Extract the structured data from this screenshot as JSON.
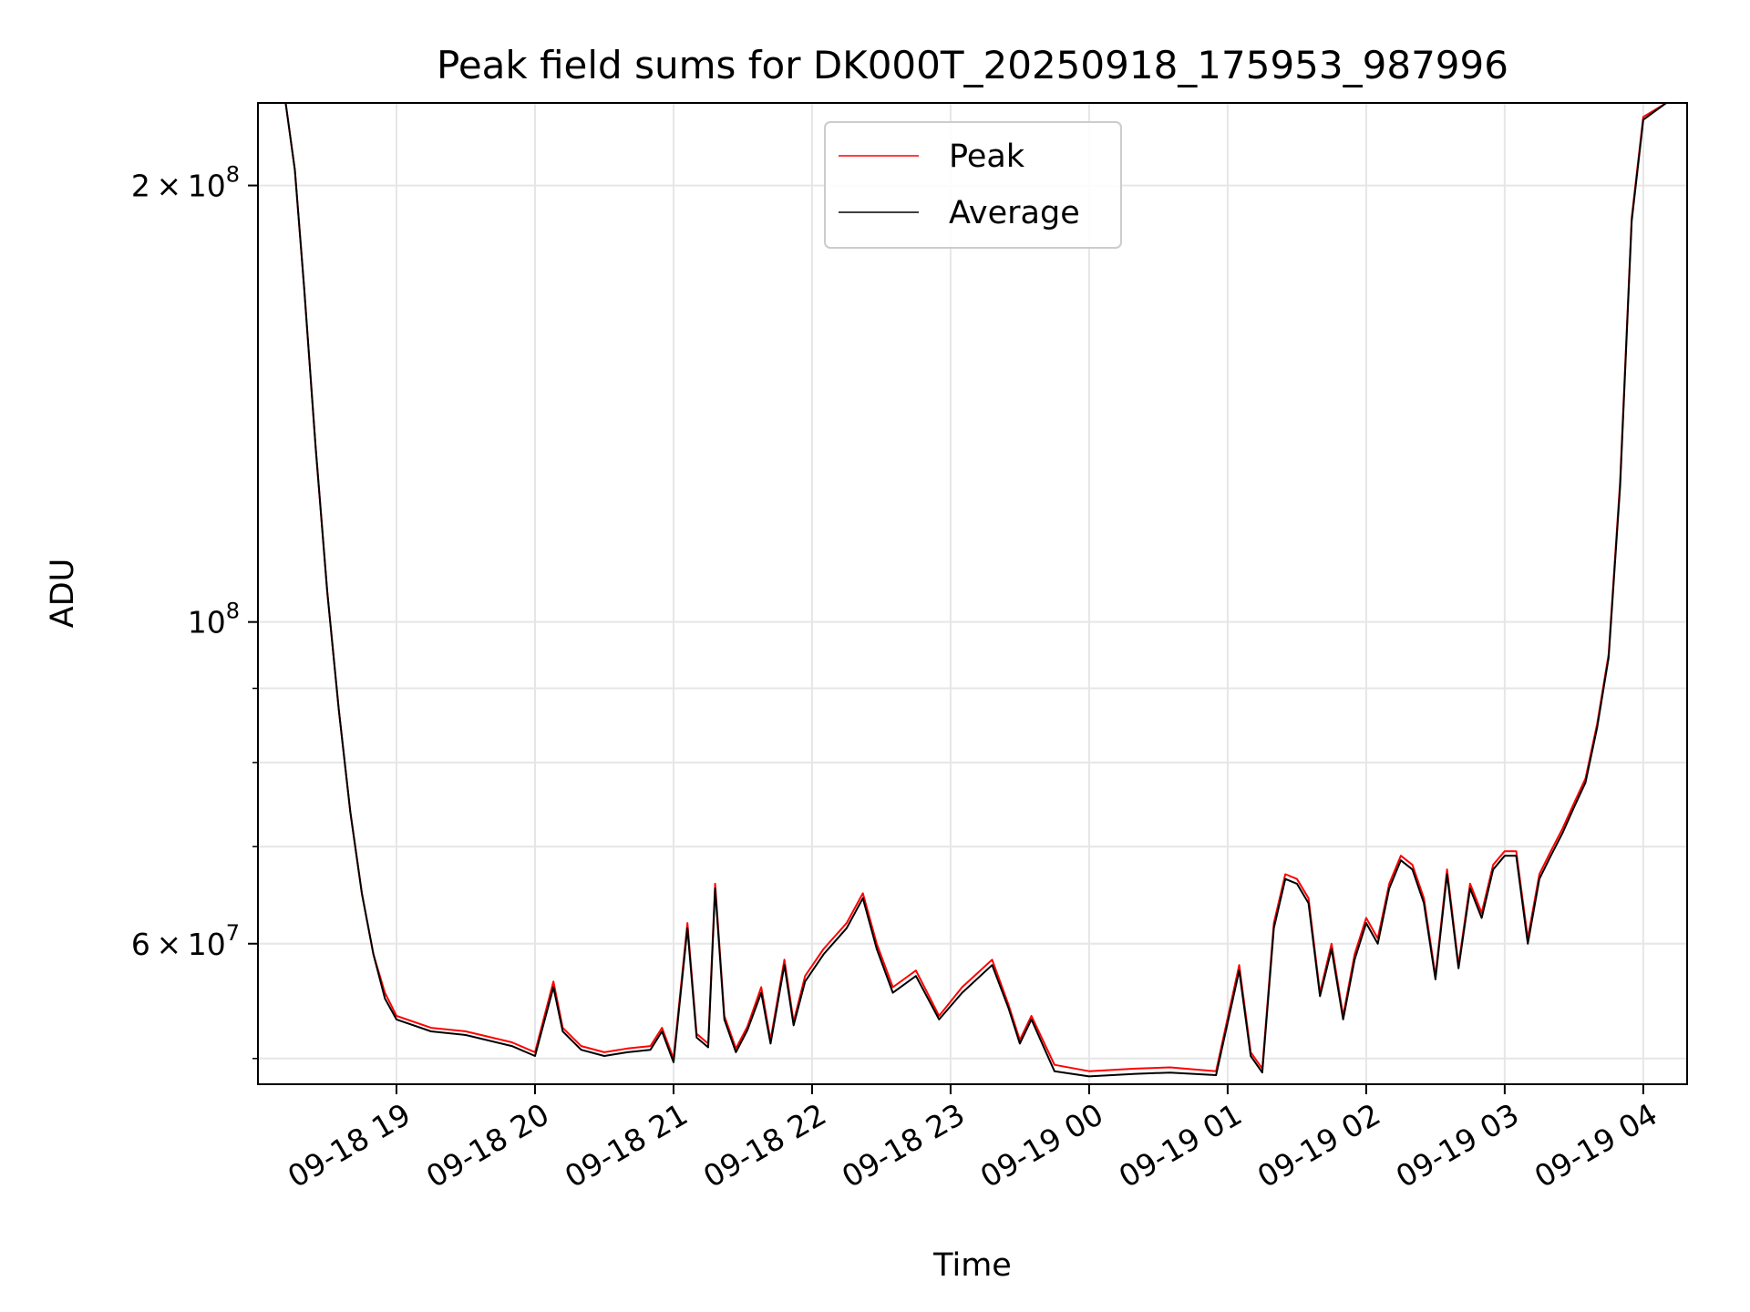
{
  "chart_data": {
    "type": "line",
    "title": "Peak field sums for DK000T_20250918_175953_987996",
    "xlabel": "Time",
    "ylabel": "ADU",
    "yscale": "log",
    "grid": true,
    "legend_placement": "top-center",
    "xlim": [
      "2025-09-18 18:00",
      "2025-09-19 04:19"
    ],
    "ylim": [
      48000000,
      228000000
    ],
    "x_ticks": [
      {
        "label": "09-18 19",
        "value": "2025-09-18 19:00"
      },
      {
        "label": "09-18 20",
        "value": "2025-09-18 20:00"
      },
      {
        "label": "09-18 21",
        "value": "2025-09-18 21:00"
      },
      {
        "label": "09-18 22",
        "value": "2025-09-18 22:00"
      },
      {
        "label": "09-18 23",
        "value": "2025-09-18 23:00"
      },
      {
        "label": "09-19 00",
        "value": "2025-09-19 00:00"
      },
      {
        "label": "09-19 01",
        "value": "2025-09-19 01:00"
      },
      {
        "label": "09-19 02",
        "value": "2025-09-19 02:00"
      },
      {
        "label": "09-19 03",
        "value": "2025-09-19 03:00"
      },
      {
        "label": "09-19 04",
        "value": "2025-09-19 04:00"
      }
    ],
    "y_ticks": [
      {
        "mantissa": "6",
        "times": "×",
        "base": "10",
        "exp": "7",
        "value": 60000000
      },
      {
        "mantissa": "",
        "times": "",
        "base": "10",
        "exp": "8",
        "value": 100000000
      },
      {
        "mantissa": "2",
        "times": "×",
        "base": "10",
        "exp": "8",
        "value": 200000000
      }
    ],
    "y_minor_ticks": [
      50000000,
      70000000,
      80000000,
      90000000
    ],
    "series": [
      {
        "name": "Peak",
        "color": "#ff0000",
        "x": [
          "2025-09-18 18:00",
          "2025-09-18 18:12",
          "2025-09-18 18:16",
          "2025-09-18 18:20",
          "2025-09-18 18:25",
          "2025-09-18 18:30",
          "2025-09-18 18:35",
          "2025-09-18 18:40",
          "2025-09-18 18:45",
          "2025-09-18 18:50",
          "2025-09-18 18:55",
          "2025-09-18 19:00",
          "2025-09-18 19:15",
          "2025-09-18 19:30",
          "2025-09-18 19:50",
          "2025-09-18 20:00",
          "2025-09-18 20:08",
          "2025-09-18 20:12",
          "2025-09-18 20:20",
          "2025-09-18 20:30",
          "2025-09-18 20:40",
          "2025-09-18 20:50",
          "2025-09-18 20:55",
          "2025-09-18 21:00",
          "2025-09-18 21:06",
          "2025-09-18 21:10",
          "2025-09-18 21:15",
          "2025-09-18 21:18",
          "2025-09-18 21:22",
          "2025-09-18 21:27",
          "2025-09-18 21:32",
          "2025-09-18 21:38",
          "2025-09-18 21:42",
          "2025-09-18 21:48",
          "2025-09-18 21:52",
          "2025-09-18 21:57",
          "2025-09-18 22:05",
          "2025-09-18 22:15",
          "2025-09-18 22:22",
          "2025-09-18 22:28",
          "2025-09-18 22:35",
          "2025-09-18 22:45",
          "2025-09-18 22:55",
          "2025-09-18 23:05",
          "2025-09-18 23:18",
          "2025-09-18 23:25",
          "2025-09-18 23:30",
          "2025-09-18 23:35",
          "2025-09-18 23:45",
          "2025-09-19 00:00",
          "2025-09-19 00:20",
          "2025-09-19 00:35",
          "2025-09-19 00:55",
          "2025-09-19 01:05",
          "2025-09-19 01:10",
          "2025-09-19 01:15",
          "2025-09-19 01:20",
          "2025-09-19 01:25",
          "2025-09-19 01:30",
          "2025-09-19 01:35",
          "2025-09-19 01:40",
          "2025-09-19 01:45",
          "2025-09-19 01:50",
          "2025-09-19 01:55",
          "2025-09-19 02:00",
          "2025-09-19 02:05",
          "2025-09-19 02:10",
          "2025-09-19 02:15",
          "2025-09-19 02:20",
          "2025-09-19 02:25",
          "2025-09-19 02:30",
          "2025-09-19 02:35",
          "2025-09-19 02:40",
          "2025-09-19 02:45",
          "2025-09-19 02:50",
          "2025-09-19 02:55",
          "2025-09-19 03:00",
          "2025-09-19 03:05",
          "2025-09-19 03:10",
          "2025-09-19 03:15",
          "2025-09-19 03:20",
          "2025-09-19 03:25",
          "2025-09-19 03:30",
          "2025-09-19 03:35",
          "2025-09-19 03:40",
          "2025-09-19 03:45",
          "2025-09-19 03:50",
          "2025-09-19 03:55",
          "2025-09-19 04:00",
          "2025-09-19 04:10",
          "2025-09-19 04:19"
        ],
        "values": [
          228000000,
          228000000,
          205000000,
          170000000,
          132000000,
          105000000,
          87000000,
          74000000,
          65000000,
          59000000,
          55500000,
          53500000,
          52500000,
          52200000,
          51300000,
          50500000,
          56500000,
          52500000,
          51000000,
          50500000,
          50800000,
          51000000,
          52500000,
          50000000,
          62000000,
          52000000,
          51200000,
          66000000,
          53500000,
          50800000,
          52600000,
          56000000,
          51500000,
          58500000,
          53000000,
          57000000,
          59500000,
          62000000,
          65000000,
          60000000,
          56000000,
          57500000,
          53500000,
          56000000,
          58500000,
          54500000,
          51500000,
          53500000,
          49500000,
          49000000,
          49200000,
          49300000,
          49000000,
          58000000,
          50500000,
          49200000,
          62000000,
          67000000,
          66500000,
          64500000,
          55500000,
          60000000,
          53500000,
          59000000,
          62500000,
          60500000,
          66000000,
          69000000,
          68000000,
          64500000,
          57000000,
          67500000,
          58000000,
          66000000,
          63000000,
          68000000,
          69500000,
          69500000,
          60500000,
          67000000,
          69500000,
          72000000,
          75000000,
          78000000,
          85000000,
          95000000,
          125000000,
          190000000,
          223000000,
          228000000,
          228000000
        ]
      },
      {
        "name": "Average",
        "color": "#000000",
        "x": [
          "2025-09-18 18:00",
          "2025-09-18 18:12",
          "2025-09-18 18:16",
          "2025-09-18 18:20",
          "2025-09-18 18:25",
          "2025-09-18 18:30",
          "2025-09-18 18:35",
          "2025-09-18 18:40",
          "2025-09-18 18:45",
          "2025-09-18 18:50",
          "2025-09-18 18:55",
          "2025-09-18 19:00",
          "2025-09-18 19:15",
          "2025-09-18 19:30",
          "2025-09-18 19:50",
          "2025-09-18 20:00",
          "2025-09-18 20:08",
          "2025-09-18 20:12",
          "2025-09-18 20:20",
          "2025-09-18 20:30",
          "2025-09-18 20:40",
          "2025-09-18 20:50",
          "2025-09-18 20:55",
          "2025-09-18 21:00",
          "2025-09-18 21:06",
          "2025-09-18 21:10",
          "2025-09-18 21:15",
          "2025-09-18 21:18",
          "2025-09-18 21:22",
          "2025-09-18 21:27",
          "2025-09-18 21:32",
          "2025-09-18 21:38",
          "2025-09-18 21:42",
          "2025-09-18 21:48",
          "2025-09-18 21:52",
          "2025-09-18 21:57",
          "2025-09-18 22:05",
          "2025-09-18 22:15",
          "2025-09-18 22:22",
          "2025-09-18 22:28",
          "2025-09-18 22:35",
          "2025-09-18 22:45",
          "2025-09-18 22:55",
          "2025-09-18 23:05",
          "2025-09-18 23:18",
          "2025-09-18 23:25",
          "2025-09-18 23:30",
          "2025-09-18 23:35",
          "2025-09-18 23:45",
          "2025-09-19 00:00",
          "2025-09-19 00:20",
          "2025-09-19 00:35",
          "2025-09-19 00:55",
          "2025-09-19 01:05",
          "2025-09-19 01:10",
          "2025-09-19 01:15",
          "2025-09-19 01:20",
          "2025-09-19 01:25",
          "2025-09-19 01:30",
          "2025-09-19 01:35",
          "2025-09-19 01:40",
          "2025-09-19 01:45",
          "2025-09-19 01:50",
          "2025-09-19 01:55",
          "2025-09-19 02:00",
          "2025-09-19 02:05",
          "2025-09-19 02:10",
          "2025-09-19 02:15",
          "2025-09-19 02:20",
          "2025-09-19 02:25",
          "2025-09-19 02:30",
          "2025-09-19 02:35",
          "2025-09-19 02:40",
          "2025-09-19 02:45",
          "2025-09-19 02:50",
          "2025-09-19 02:55",
          "2025-09-19 03:00",
          "2025-09-19 03:05",
          "2025-09-19 03:10",
          "2025-09-19 03:15",
          "2025-09-19 03:20",
          "2025-09-19 03:25",
          "2025-09-19 03:30",
          "2025-09-19 03:35",
          "2025-09-19 03:40",
          "2025-09-19 03:45",
          "2025-09-19 03:50",
          "2025-09-19 03:55",
          "2025-09-19 04:00",
          "2025-09-19 04:10",
          "2025-09-19 04:19"
        ],
        "values": [
          228000000,
          228000000,
          205000000,
          170000000,
          132000000,
          105000000,
          87000000,
          74000000,
          65000000,
          59000000,
          55000000,
          53200000,
          52200000,
          51900000,
          51000000,
          50200000,
          56000000,
          52200000,
          50700000,
          50200000,
          50500000,
          50700000,
          52200000,
          49700000,
          61500000,
          51700000,
          50900000,
          65500000,
          53200000,
          50500000,
          52300000,
          55500000,
          51200000,
          58000000,
          52700000,
          56500000,
          59000000,
          61500000,
          64500000,
          59500000,
          55500000,
          57000000,
          53200000,
          55500000,
          58000000,
          54200000,
          51200000,
          53200000,
          49000000,
          48600000,
          48800000,
          48900000,
          48700000,
          57500000,
          50200000,
          48900000,
          61500000,
          66500000,
          66000000,
          64000000,
          55200000,
          59500000,
          53200000,
          58500000,
          62000000,
          60000000,
          65500000,
          68500000,
          67500000,
          64000000,
          56700000,
          67000000,
          57700000,
          65500000,
          62500000,
          67500000,
          69000000,
          69000000,
          60000000,
          66500000,
          69000000,
          71500000,
          74500000,
          77500000,
          84500000,
          94500000,
          124000000,
          189000000,
          222000000,
          228000000,
          228000000
        ]
      }
    ]
  }
}
